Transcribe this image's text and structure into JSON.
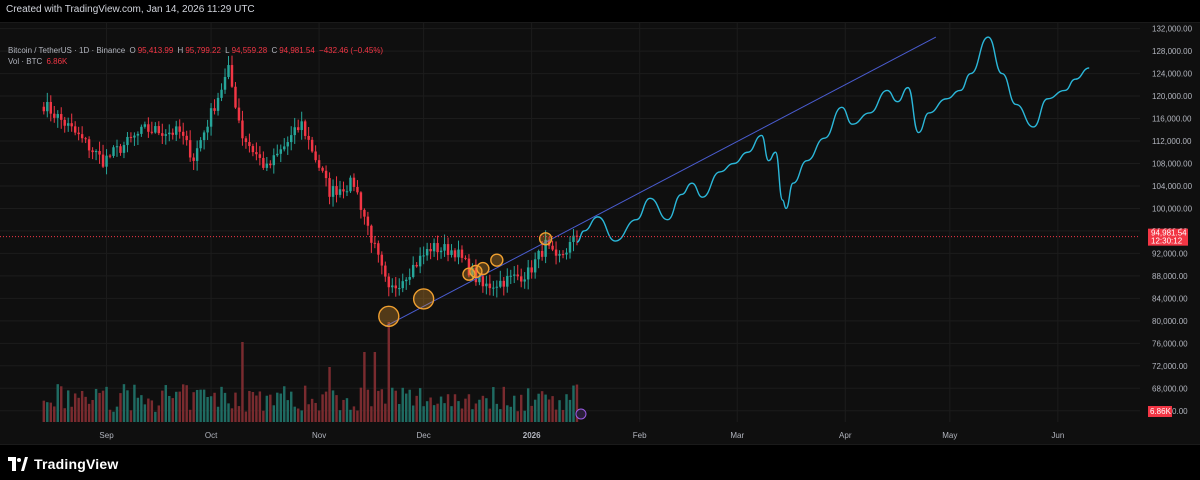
{
  "caption": "Created with TradingView.com, Jan 14, 2026 11:29 UTC",
  "legend": {
    "symbol": "Bitcoin / TetherUS · 1D · Binance",
    "open_key": "O",
    "open_val": "95,413.99",
    "high_key": "H",
    "high_val": "95,799.22",
    "low_key": "L",
    "low_val": "94,559.28",
    "close_key": "C",
    "close_val": "94,981.54",
    "change": "−432.46 (−0.45%)",
    "vol_label": "Vol · BTC",
    "vol_value": "6.86K"
  },
  "footer": {
    "brand": "TradingView"
  },
  "colors": {
    "up": "#26a69a",
    "down": "#f23645",
    "up_vol": "#1f6b62",
    "down_vol": "#7a2b2f",
    "projection": "#2bb7d9",
    "trendline": "#4a5cd0",
    "marker": "#f0a030",
    "price_line": "#f23645"
  },
  "chart_data": {
    "type": "candlestick",
    "y_ticks": [
      "132,000.00",
      "128,000.00",
      "124,000.00",
      "120,000.00",
      "116,000.00",
      "112,000.00",
      "108,000.00",
      "104,000.00",
      "100,000.00",
      "96,000.00",
      "92,000.00",
      "88,000.00",
      "84,000.00",
      "80,000.00",
      "76,000.00",
      "72,000.00",
      "68,000.00",
      "64,000.00"
    ],
    "ylim": [
      62000,
      133000
    ],
    "x_ticks": [
      "Sep",
      "Oct",
      "Nov",
      "Dec",
      "2026",
      "Feb",
      "Mar",
      "Apr",
      "May",
      "Jun"
    ],
    "last_price_label": "94,981.54",
    "countdown_label": "12:30:12",
    "volume_label": "6.86K",
    "price_anchors": [
      {
        "date": "2025-08-14",
        "price": 118500
      },
      {
        "date": "2025-08-22",
        "price": 114000
      },
      {
        "date": "2025-08-31",
        "price": 108500
      },
      {
        "date": "2025-09-12",
        "price": 114000
      },
      {
        "date": "2025-09-22",
        "price": 113500
      },
      {
        "date": "2025-09-26",
        "price": 109000
      },
      {
        "date": "2025-10-03",
        "price": 120000
      },
      {
        "date": "2025-10-06",
        "price": 124500
      },
      {
        "date": "2025-10-10",
        "price": 113000
      },
      {
        "date": "2025-10-17",
        "price": 107000
      },
      {
        "date": "2025-10-27",
        "price": 115000
      },
      {
        "date": "2025-11-04",
        "price": 103000
      },
      {
        "date": "2025-11-11",
        "price": 104500
      },
      {
        "date": "2025-11-21",
        "price": 85000
      },
      {
        "date": "2025-12-03",
        "price": 93000
      },
      {
        "date": "2025-12-10",
        "price": 92500
      },
      {
        "date": "2025-12-18",
        "price": 86000
      },
      {
        "date": "2025-12-31",
        "price": 88500
      },
      {
        "date": "2026-01-05",
        "price": 93500
      },
      {
        "date": "2026-01-08",
        "price": 90500
      },
      {
        "date": "2026-01-14",
        "price": 94981.54
      }
    ],
    "annotations": {
      "circles": [
        {
          "date": "2025-11-21",
          "price": 80800,
          "r": 10
        },
        {
          "date": "2025-12-01",
          "price": 83900,
          "r": 10
        },
        {
          "date": "2025-12-14",
          "price": 88300,
          "r": 6
        },
        {
          "date": "2025-12-16",
          "price": 88800,
          "r": 6
        },
        {
          "date": "2025-12-18",
          "price": 89300,
          "r": 6
        },
        {
          "date": "2025-12-22",
          "price": 90800,
          "r": 6
        },
        {
          "date": "2026-01-05",
          "price": 94600,
          "r": 6
        }
      ],
      "trendline": [
        {
          "date": "2025-11-20",
          "price": 79000
        },
        {
          "date": "2026-04-27",
          "price": 130500
        }
      ],
      "projection_path": [
        {
          "date": "2026-01-14",
          "price": 94000
        },
        {
          "date": "2026-01-16",
          "price": 96000
        },
        {
          "date": "2026-01-20",
          "price": 98500
        },
        {
          "date": "2026-01-25",
          "price": 94200
        },
        {
          "date": "2026-01-31",
          "price": 98000
        },
        {
          "date": "2026-02-04",
          "price": 101800
        },
        {
          "date": "2026-02-09",
          "price": 98000
        },
        {
          "date": "2026-02-13",
          "price": 102500
        },
        {
          "date": "2026-02-16",
          "price": 104500
        },
        {
          "date": "2026-02-19",
          "price": 102000
        },
        {
          "date": "2026-02-24",
          "price": 106500
        },
        {
          "date": "2026-02-28",
          "price": 108000
        },
        {
          "date": "2026-03-04",
          "price": 110000
        },
        {
          "date": "2026-03-08",
          "price": 113000
        },
        {
          "date": "2026-03-10",
          "price": 108500
        },
        {
          "date": "2026-03-12",
          "price": 110000
        },
        {
          "date": "2026-03-14",
          "price": 101500
        },
        {
          "date": "2026-03-15",
          "price": 100000
        },
        {
          "date": "2026-03-17",
          "price": 104500
        },
        {
          "date": "2026-03-21",
          "price": 108500
        },
        {
          "date": "2026-03-26",
          "price": 112500
        },
        {
          "date": "2026-03-31",
          "price": 118000
        },
        {
          "date": "2026-04-03",
          "price": 115000
        },
        {
          "date": "2026-04-08",
          "price": 117000
        },
        {
          "date": "2026-04-13",
          "price": 121000
        },
        {
          "date": "2026-04-16",
          "price": 119000
        },
        {
          "date": "2026-04-19",
          "price": 121500
        },
        {
          "date": "2026-04-22",
          "price": 113500
        },
        {
          "date": "2026-04-25",
          "price": 117000
        },
        {
          "date": "2026-04-30",
          "price": 119500
        },
        {
          "date": "2026-05-04",
          "price": 121000
        },
        {
          "date": "2026-05-07",
          "price": 124000
        },
        {
          "date": "2026-05-12",
          "price": 130500
        },
        {
          "date": "2026-05-16",
          "price": 124000
        },
        {
          "date": "2026-05-20",
          "price": 118500
        },
        {
          "date": "2026-05-25",
          "price": 114500
        },
        {
          "date": "2026-05-29",
          "price": 119500
        },
        {
          "date": "2026-06-03",
          "price": 121000
        },
        {
          "date": "2026-06-06",
          "price": 123000
        },
        {
          "date": "2026-06-10",
          "price": 125000
        }
      ]
    }
  }
}
